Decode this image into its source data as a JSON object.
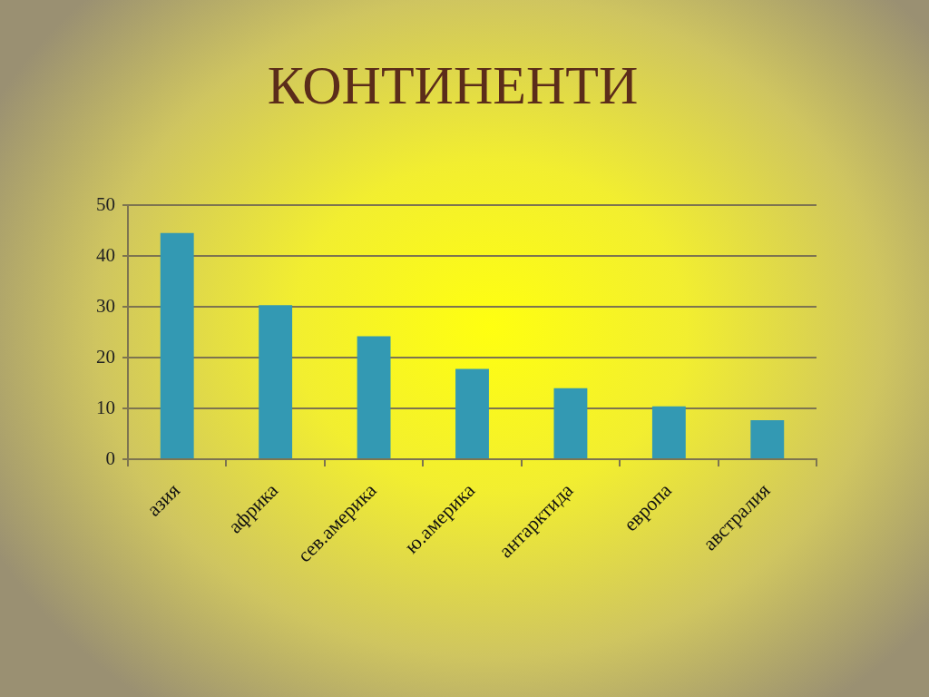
{
  "chart_data": {
    "type": "bar",
    "title": "КОНТИНЕНТИ",
    "categories": [
      "азия",
      "африка",
      "сев.америка",
      "ю.америка",
      "антарктида",
      "европа",
      "австралия"
    ],
    "values": [
      44.5,
      30.3,
      24.2,
      17.8,
      14,
      10.4,
      7.7
    ],
    "color": "#3399b3",
    "ylim": [
      0,
      50
    ],
    "yticks": [
      0,
      10,
      20,
      30,
      40,
      50
    ],
    "grid": "y"
  }
}
